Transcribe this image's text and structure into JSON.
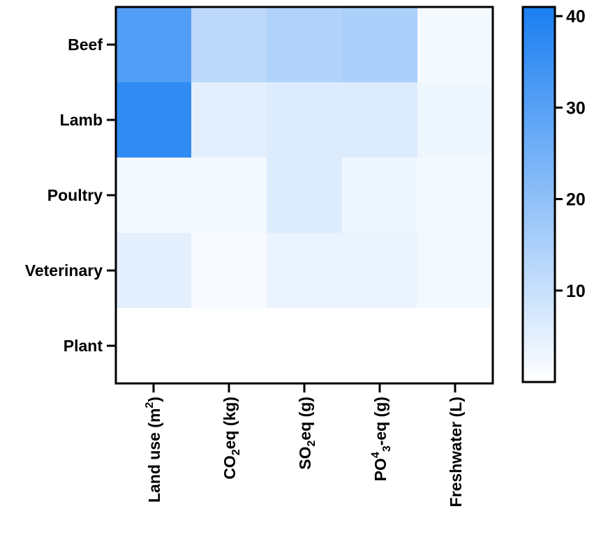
{
  "chart_data": {
    "type": "heatmap",
    "title": "",
    "xlabel": "",
    "ylabel": "",
    "rows": [
      "Beef",
      "Lamb",
      "Poultry",
      "Veterinary",
      "Plant"
    ],
    "columns": [
      {
        "base": "Land use (m",
        "sup": "2",
        "after": ")"
      },
      {
        "base": "CO",
        "sub": "2",
        "after": "eq (kg)"
      },
      {
        "base": "SO",
        "sub": "2",
        "after": "eq (g)"
      },
      {
        "base": "PO",
        "sup": "4",
        "sub": "3",
        "after": "-eq (g)"
      },
      {
        "base": "Freshwater (L)"
      }
    ],
    "values": [
      [
        31,
        12,
        14,
        15,
        2
      ],
      [
        37,
        5,
        6,
        6,
        3
      ],
      [
        2,
        2,
        6,
        3,
        2
      ],
      [
        5,
        1.5,
        3.5,
        3.5,
        2
      ],
      [
        0,
        0,
        0,
        0,
        0
      ]
    ],
    "color_scale": {
      "min": 0,
      "max": 41,
      "low_color": "#ffffff",
      "high_color": "#1a7ef2",
      "ticks": [
        10,
        20,
        30,
        40
      ]
    }
  }
}
